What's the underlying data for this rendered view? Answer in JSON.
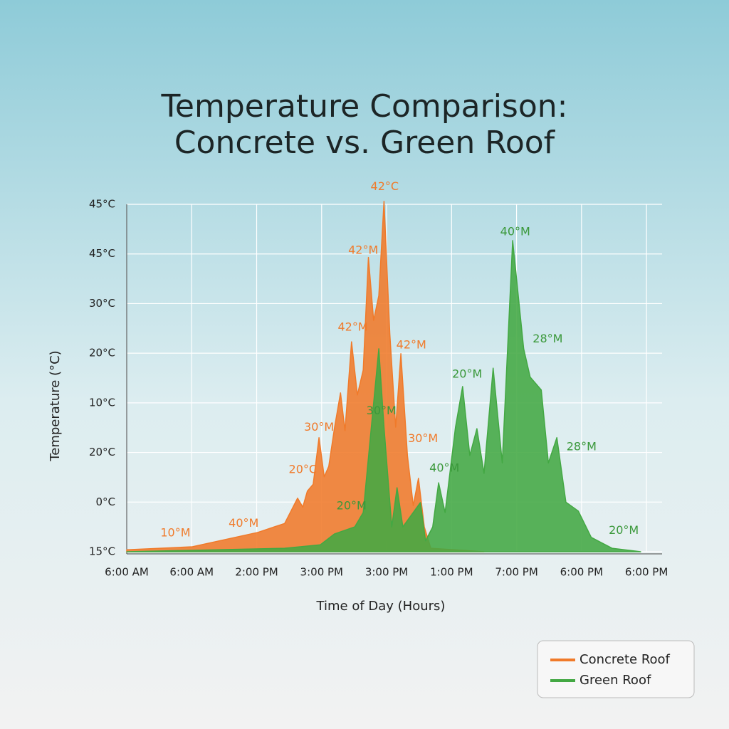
{
  "chart_data": {
    "type": "area",
    "title": [
      "Temperature Comparison:",
      "Concrete vs. Green Roof"
    ],
    "x_label": "Time of Day (Hours)",
    "y_label": "Temperature (°C)",
    "xlim": [
      0,
      8.24
    ],
    "ylim": [
      0,
      7
    ],
    "xticks": [
      {
        "value": 0,
        "label": "6:00 AM"
      },
      {
        "value": 1,
        "label": "6:00 AM"
      },
      {
        "value": 2,
        "label": "2:00 PM"
      },
      {
        "value": 3,
        "label": "3:00 PM"
      },
      {
        "value": 4,
        "label": "3:00 PM"
      },
      {
        "value": 5,
        "label": "1:00 PM"
      },
      {
        "value": 6,
        "label": "7:00 PM"
      },
      {
        "value": 7,
        "label": "6:00 PM"
      },
      {
        "value": 8,
        "label": "6:00 PM"
      }
    ],
    "yticks": [
      {
        "value": 0,
        "label": "15°C"
      },
      {
        "value": 1,
        "label": "0°C"
      },
      {
        "value": 2,
        "label": "20°C"
      },
      {
        "value": 3,
        "label": "10°C"
      },
      {
        "value": 4,
        "label": "20°C"
      },
      {
        "value": 5,
        "label": "30°C"
      },
      {
        "value": 6,
        "label": "45°C"
      },
      {
        "value": 7,
        "label": "45°C"
      }
    ],
    "grid": true,
    "legend": "bottom-right",
    "series": [
      {
        "name": "Concrete Roof",
        "color": "#f07a2a",
        "x": [
          0,
          1.01,
          2.02,
          2.27,
          2.43,
          2.63,
          2.71,
          2.78,
          2.87,
          2.96,
          3.04,
          3.11,
          3.2,
          3.29,
          3.36,
          3.46,
          3.55,
          3.64,
          3.72,
          3.8,
          3.88,
          3.96,
          4.05,
          4.14,
          4.22,
          4.32,
          4.41,
          4.49,
          4.58,
          4.68,
          5.5
        ],
        "values": [
          0.04,
          0.1,
          0.39,
          0.5,
          0.57,
          1.08,
          0.9,
          1.22,
          1.36,
          2.3,
          1.51,
          1.72,
          2.51,
          3.2,
          2.44,
          4.23,
          3.16,
          3.66,
          5.93,
          4.66,
          5.16,
          7.06,
          4.38,
          2.51,
          3.99,
          1.94,
          0.93,
          1.48,
          0.5,
          0.07,
          0
        ]
      },
      {
        "name": "Green Roof",
        "color": "#43a843",
        "x": [
          0,
          2.43,
          2.98,
          3.2,
          3.51,
          3.64,
          3.88,
          3.96,
          4.08,
          4.16,
          4.25,
          4.52,
          4.6,
          4.71,
          4.8,
          4.9,
          5.06,
          5.17,
          5.28,
          5.39,
          5.5,
          5.64,
          5.78,
          5.94,
          6.11,
          6.21,
          6.38,
          6.49,
          6.62,
          6.76,
          6.95,
          7.15,
          7.47,
          7.91
        ],
        "values": [
          0,
          0.07,
          0.14,
          0.36,
          0.5,
          0.79,
          4.09,
          2.51,
          0.5,
          1.29,
          0.5,
          0.99,
          0.22,
          0.5,
          1.39,
          0.79,
          2.51,
          3.33,
          1.94,
          2.48,
          1.58,
          3.7,
          1.79,
          6.27,
          4.09,
          3.52,
          3.26,
          1.79,
          2.3,
          1,
          0.82,
          0.29,
          0.07,
          0
        ]
      }
    ],
    "annotations": [
      {
        "text": "42°C",
        "x": 3.97,
        "y": 7.35,
        "color": "#f07a2a"
      },
      {
        "text": "42°M",
        "x": 3.64,
        "y": 6.07,
        "color": "#f07a2a"
      },
      {
        "text": "42°M",
        "x": 3.48,
        "y": 4.52,
        "color": "#f07a2a"
      },
      {
        "text": "42°M",
        "x": 4.38,
        "y": 4.16,
        "color": "#f07a2a"
      },
      {
        "text": "30°M",
        "x": 2.96,
        "y": 2.5,
        "color": "#f07a2a"
      },
      {
        "text": "30°M",
        "x": 4.56,
        "y": 2.27,
        "color": "#f07a2a"
      },
      {
        "text": "20°C",
        "x": 2.71,
        "y": 1.65,
        "color": "#f07a2a"
      },
      {
        "text": "40°M",
        "x": 1.8,
        "y": 0.57,
        "color": "#f07a2a"
      },
      {
        "text": "10°M",
        "x": 0.75,
        "y": 0.37,
        "color": "#f07a2a"
      },
      {
        "text": "30°M",
        "x": 3.92,
        "y": 2.83,
        "color": "#3a983a"
      },
      {
        "text": "20°M",
        "x": 3.46,
        "y": 0.92,
        "color": "#3a983a"
      },
      {
        "text": "40°M",
        "x": 4.89,
        "y": 1.68,
        "color": "#3a983a"
      },
      {
        "text": "20°M",
        "x": 5.24,
        "y": 3.57,
        "color": "#3a983a"
      },
      {
        "text": "40°M",
        "x": 5.98,
        "y": 6.44,
        "color": "#3a983a"
      },
      {
        "text": "28°M",
        "x": 6.48,
        "y": 4.28,
        "color": "#3a983a"
      },
      {
        "text": "28°M",
        "x": 7.0,
        "y": 2.11,
        "color": "#3a983a"
      },
      {
        "text": "20°M",
        "x": 7.65,
        "y": 0.42,
        "color": "#3a983a"
      }
    ]
  }
}
